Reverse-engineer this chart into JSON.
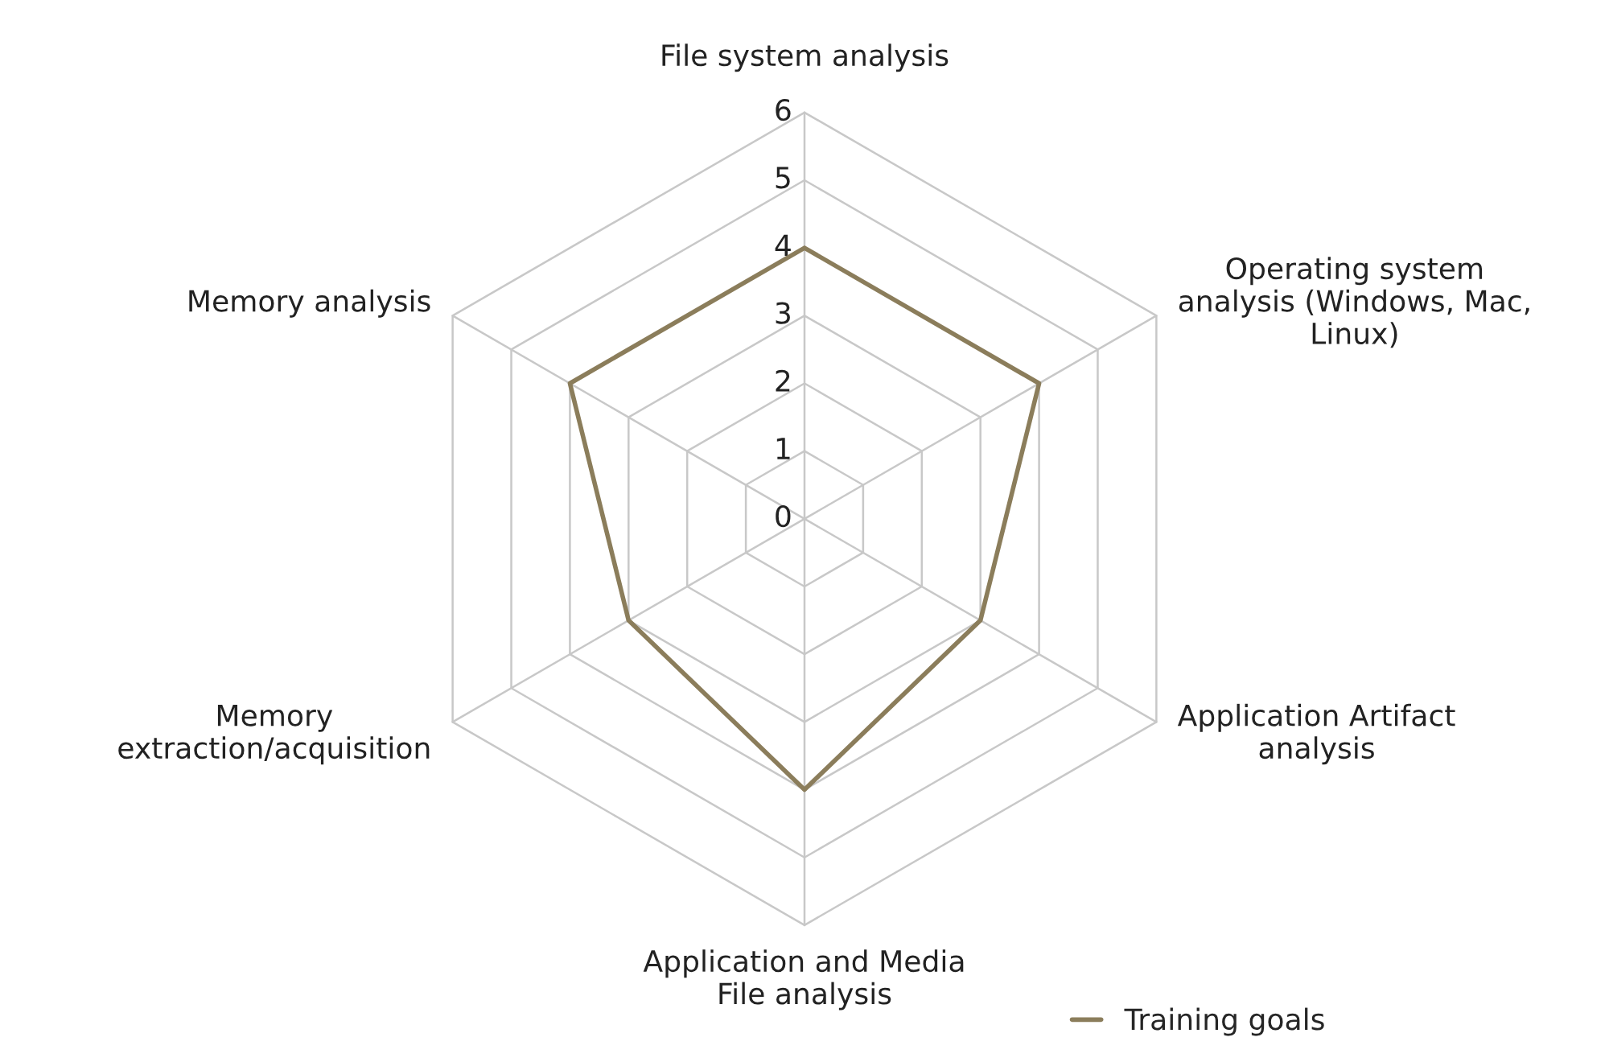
{
  "chart_data": {
    "type": "radar",
    "categories": [
      "File system analysis",
      "Operating system\nanalysis (Windows, Mac,\nLinux)",
      "Application Artifact\nanalysis",
      "Application and Media\nFile analysis",
      "Memory\nextraction/acquisition",
      "Memory analysis"
    ],
    "series": [
      {
        "name": "Training goals",
        "color": "#8b7d5b",
        "values": [
          4,
          4,
          3,
          4,
          3,
          4
        ]
      }
    ],
    "ylim": [
      0,
      6
    ],
    "yticks": [
      0,
      1,
      2,
      3,
      4,
      5,
      6
    ],
    "grid": true,
    "legend": "bottom right",
    "marker": "none",
    "line_style": "solid"
  }
}
